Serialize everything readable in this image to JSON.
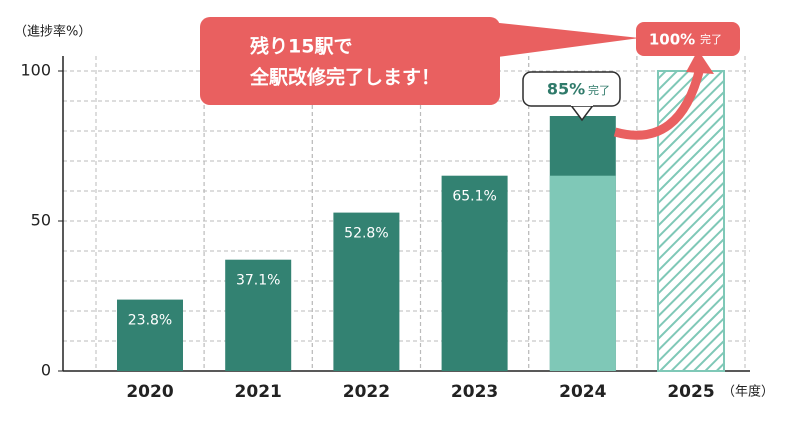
{
  "chart_data": {
    "type": "bar",
    "y_label": "（進捗率%）",
    "x_label": "（年度）",
    "categories": [
      "2020",
      "2021",
      "2022",
      "2023",
      "2024",
      "2025"
    ],
    "series": [
      {
        "color": "#338272",
        "values": [
          23.8,
          37.1,
          52.8,
          65.1,
          85,
          null
        ],
        "value_labels": [
          "23.8%",
          "37.1%",
          "52.8%",
          "65.1%",
          "85%",
          null
        ]
      },
      {
        "color": "#7fc8b7",
        "values": [
          null,
          null,
          null,
          null,
          65.1,
          null
        ]
      },
      {
        "color": "#7fc8b7",
        "pattern": "hatch",
        "values": [
          null,
          null,
          null,
          null,
          null,
          100
        ],
        "value_labels": [
          null,
          null,
          null,
          null,
          null,
          "100%"
        ]
      }
    ],
    "done_label": "完了",
    "callout": [
      "残り15駅で",
      "全駅改修完了します！"
    ],
    "ylim": [
      0,
      100
    ],
    "yticks": [
      0,
      50,
      100
    ],
    "grid_yticks": [
      10,
      20,
      30,
      40,
      50,
      60,
      70,
      80,
      90,
      100
    ],
    "grid": true
  }
}
